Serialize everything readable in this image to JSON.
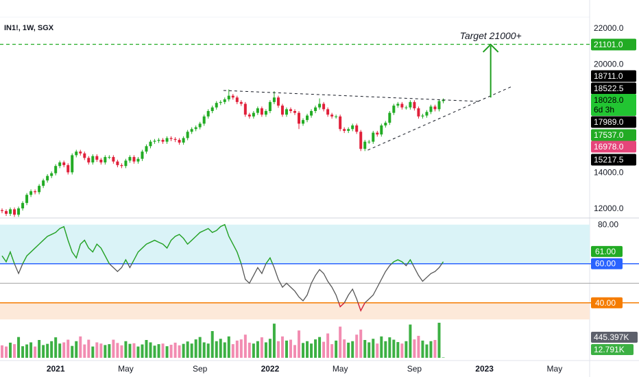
{
  "chart_data": [
    {
      "type": "candlestick",
      "title": "IN1!, 1W, SGX",
      "open": [
        11900,
        11850,
        11700,
        11950,
        11650,
        12000,
        12300,
        12750,
        12950,
        12900,
        13250,
        13550,
        13800,
        13950,
        14350,
        14550,
        14400,
        14000,
        14950,
        15150,
        15050,
        14800,
        14550,
        14900,
        14700,
        14550,
        14850,
        14850,
        14600,
        14400,
        14350,
        14650,
        14850,
        14600,
        14750,
        15150,
        15450,
        15700,
        15750,
        15800,
        15700,
        15900,
        15850,
        15800,
        15650,
        15900,
        16250,
        16400,
        16500,
        16700,
        17100,
        17400,
        17600,
        17850,
        17900,
        18050,
        18250,
        18150,
        17900,
        17800,
        17200,
        17100,
        17300,
        17550,
        17200,
        17400,
        17900,
        18150,
        17700,
        17200,
        17500,
        17400,
        17300,
        16700,
        16900,
        17150,
        17400,
        17600,
        17800,
        17500,
        17200,
        17100,
        17100,
        16400,
        16300,
        16400,
        16600,
        16250,
        15300,
        15700,
        15700,
        16200,
        16100,
        16600,
        16750,
        17300,
        17700,
        17800,
        17600,
        17600,
        17900,
        17550,
        17100,
        17150,
        17350,
        17650,
        17500,
        17950
      ],
      "high": [
        12000,
        11950,
        12050,
        12050,
        12100,
        12400,
        12850,
        13050,
        13050,
        13350,
        13650,
        13900,
        14050,
        14450,
        14650,
        14650,
        14500,
        15050,
        15250,
        15250,
        15150,
        14900,
        15000,
        15000,
        14800,
        14950,
        14950,
        14950,
        14700,
        14500,
        14750,
        14950,
        14950,
        14850,
        15250,
        15550,
        15800,
        15850,
        15900,
        15900,
        16000,
        16000,
        15950,
        15900,
        16000,
        16350,
        16500,
        16600,
        16800,
        17200,
        17500,
        17700,
        17950,
        18000,
        18150,
        18600,
        18350,
        18250,
        18000,
        17900,
        17300,
        17400,
        17650,
        17650,
        17500,
        18000,
        18500,
        18250,
        17800,
        17600,
        17600,
        17500,
        17400,
        17000,
        17250,
        17500,
        17700,
        18100,
        17900,
        17600,
        17300,
        17200,
        17200,
        16500,
        16500,
        16700,
        16700,
        16350,
        15800,
        15800,
        16300,
        16300,
        16700,
        16850,
        17400,
        17800,
        17900,
        17900,
        17700,
        18000,
        18000,
        17650,
        17250,
        17450,
        17750,
        17750,
        18050,
        18100
      ],
      "low": [
        11730,
        11580,
        11580,
        11530,
        11530,
        11880,
        12180,
        12630,
        12780,
        12780,
        13130,
        13430,
        13680,
        13830,
        14230,
        14280,
        13880,
        13880,
        14830,
        14930,
        14680,
        14430,
        14430,
        14580,
        14430,
        14430,
        14730,
        14480,
        14280,
        14230,
        14230,
        14530,
        14480,
        14480,
        14630,
        15030,
        15330,
        15580,
        15630,
        15580,
        15580,
        15730,
        15680,
        15530,
        15530,
        15780,
        16130,
        16280,
        16380,
        16580,
        16980,
        17280,
        17480,
        17730,
        17780,
        17930,
        18030,
        17780,
        17680,
        17080,
        16980,
        16980,
        17180,
        17080,
        17080,
        17280,
        17780,
        17580,
        17080,
        17080,
        17280,
        17180,
        16400,
        16580,
        16780,
        17030,
        17280,
        17480,
        17380,
        17080,
        16980,
        16980,
        16280,
        16180,
        16180,
        16280,
        16130,
        15180,
        15180,
        15580,
        15580,
        15980,
        15980,
        16480,
        16630,
        17180,
        17580,
        17480,
        17480,
        17480,
        17430,
        16980,
        16980,
        17030,
        17230,
        17380,
        17380,
        17830
      ],
      "close": [
        11850,
        11700,
        11950,
        11650,
        12000,
        12300,
        12750,
        12950,
        12900,
        13250,
        13550,
        13800,
        13950,
        14350,
        14550,
        14400,
        14000,
        14950,
        15150,
        15050,
        14800,
        14550,
        14900,
        14700,
        14550,
        14850,
        14850,
        14600,
        14400,
        14350,
        14650,
        14850,
        14600,
        14750,
        15150,
        15450,
        15700,
        15750,
        15800,
        15700,
        15900,
        15850,
        15800,
        15650,
        15900,
        16250,
        16400,
        16500,
        16700,
        17100,
        17400,
        17600,
        17850,
        17900,
        18050,
        18250,
        18150,
        17900,
        17800,
        17200,
        17100,
        17300,
        17550,
        17200,
        17400,
        17900,
        18150,
        17700,
        17200,
        17500,
        17400,
        17300,
        16700,
        16900,
        17150,
        17400,
        17600,
        17800,
        17500,
        17200,
        17100,
        17100,
        16400,
        16300,
        16400,
        16600,
        16250,
        15300,
        15700,
        15700,
        16200,
        16100,
        16600,
        16750,
        17300,
        17700,
        17800,
        17600,
        17600,
        17900,
        17550,
        17100,
        17150,
        17350,
        17650,
        17500,
        17950,
        18028
      ],
      "up_color": "#22ab24",
      "down_color": "#e0203a",
      "xlim": [
        -0.5,
        142.5
      ],
      "xticks": [
        {
          "value": 13,
          "label": "2021"
        },
        {
          "value": 30,
          "label": "May"
        },
        {
          "value": 48,
          "label": "Sep"
        },
        {
          "value": 65,
          "label": "2022"
        },
        {
          "value": 82,
          "label": "May"
        },
        {
          "value": 100,
          "label": "Sep"
        },
        {
          "value": 117,
          "label": "2023"
        },
        {
          "value": 134,
          "label": "May"
        }
      ],
      "ylim": [
        11582,
        23559
      ],
      "yticks": [
        {
          "value": 12000,
          "label": "12000.0"
        },
        {
          "value": 14000,
          "label": "14000.0"
        },
        {
          "value": 20000,
          "label": "20000.0"
        },
        {
          "value": 22000,
          "label": "22000.0"
        }
      ],
      "price_labels": [
        {
          "value": 21101,
          "label": "21101.0",
          "color": "#22ab24"
        },
        {
          "value": 18711,
          "label": "18711.0",
          "color": "#000000"
        },
        {
          "value": 18522.5,
          "label": "18522.5",
          "color": "#000000"
        },
        {
          "value": 18028,
          "label": "18028.0",
          "color": "#22c532",
          "countdown": "6d 3h"
        },
        {
          "value": 17989,
          "label": "17989.0",
          "color": "#000000"
        },
        {
          "value": 17537,
          "label": "17537.0",
          "color": "#22ab24"
        },
        {
          "value": 16978,
          "label": "16978.0",
          "color": "#e6457a"
        },
        {
          "value": 15217.5,
          "label": "15217.5",
          "color": "#000000"
        }
      ],
      "target_line": {
        "value": 21101,
        "color": "#22ab24"
      },
      "trendlines": [
        {
          "points": [
            [
              53.7,
              18540
            ],
            [
              116,
              17930
            ]
          ]
        },
        {
          "points": [
            [
              88.7,
              15230
            ],
            [
              123.7,
              18770
            ]
          ]
        }
      ],
      "arrow": {
        "from": [
          118.5,
          18150
        ],
        "to": [
          118.5,
          21090
        ],
        "color": "#1e9e1e",
        "text": "Target 21000+"
      }
    },
    {
      "type": "line",
      "values": [
        64,
        61,
        66,
        60,
        55,
        60,
        64,
        66,
        68,
        70,
        72,
        74,
        75,
        76,
        78,
        79,
        72,
        66,
        63,
        70,
        72,
        68,
        66,
        70,
        68,
        64,
        60,
        58,
        56,
        58,
        62,
        58,
        62,
        66,
        68,
        70,
        71,
        72,
        71,
        70,
        68,
        72,
        74,
        75,
        73,
        70,
        72,
        74,
        76,
        77,
        78,
        76,
        77,
        79,
        80,
        74,
        70,
        66,
        60,
        52,
        50,
        54,
        58,
        55,
        60,
        63,
        58,
        52,
        48,
        50,
        48,
        46,
        43,
        41,
        44,
        50,
        54,
        57,
        55,
        51,
        48,
        44,
        38,
        40,
        44,
        47,
        42,
        36,
        40,
        42,
        44,
        48,
        52,
        56,
        59,
        61,
        62,
        61,
        59,
        62,
        58,
        54,
        51,
        53,
        55,
        56,
        58,
        61
      ],
      "ylim": [
        31.5,
        82
      ],
      "yticks": [
        {
          "value": 80,
          "label": "80.00"
        }
      ],
      "bands": [
        {
          "from": 60,
          "to": 80,
          "color": "#daf3f7"
        },
        {
          "from": 31.5,
          "to": 40,
          "color": "#fde9d9"
        }
      ],
      "levels": [
        {
          "value": 60,
          "label": "60.00",
          "color": "#2962ff"
        },
        {
          "value": 50,
          "color": "#a0a0a0"
        },
        {
          "value": 40,
          "label": "40.00",
          "color": "#f57c00"
        }
      ],
      "last_label": {
        "value": 61,
        "label": "61.00",
        "color": "#22ab24"
      },
      "colors": {
        "high": "#22ab24",
        "mid": "#555555",
        "low": "#e0203a"
      }
    },
    {
      "type": "bar",
      "values": [
        420,
        380,
        510,
        460,
        700,
        390,
        450,
        520,
        380,
        600,
        430,
        470,
        560,
        690,
        480,
        520,
        610,
        400,
        560,
        720,
        450,
        610,
        380,
        520,
        480,
        430,
        460,
        610,
        500,
        420,
        560,
        470,
        490,
        380,
        450,
        600,
        520,
        410,
        460,
        480,
        390,
        440,
        510,
        420,
        470,
        550,
        480,
        620,
        700,
        520,
        480,
        900,
        560,
        640,
        520,
        720,
        460,
        580,
        620,
        780,
        510,
        480,
        560,
        690,
        520,
        640,
        1150,
        560,
        720,
        580,
        610,
        430,
        920,
        500,
        560,
        480,
        620,
        700,
        540,
        820,
        460,
        580,
        1050,
        620,
        510,
        560,
        780,
        950,
        600,
        520,
        640,
        480,
        720,
        560,
        690,
        610,
        530,
        480,
        560,
        1120,
        620,
        740,
        580,
        450,
        560,
        600,
        1180,
        12.791
      ],
      "ylim": [
        0,
        1200
      ],
      "ma_label": "445.397K",
      "last_value_label": "12.791K",
      "up_color": "#3cb043",
      "down_color": "#f28cb1"
    }
  ]
}
